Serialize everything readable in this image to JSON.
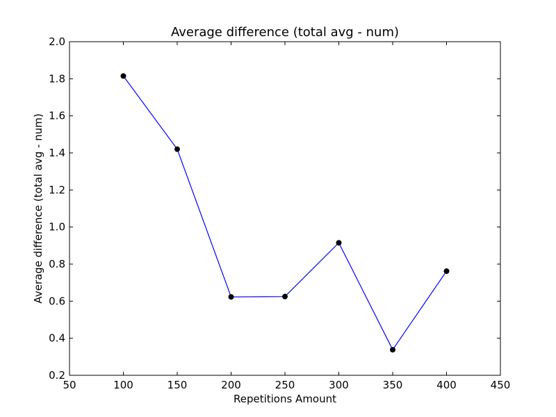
{
  "chart_data": {
    "type": "line",
    "title": "Average difference (total avg - num)",
    "xlabel": "Repetitions Amount",
    "ylabel": "Average difference (total avg - num)",
    "xlim": [
      50,
      450
    ],
    "ylim": [
      0.2,
      2.0
    ],
    "xticks": [
      50,
      100,
      150,
      200,
      250,
      300,
      350,
      400,
      450
    ],
    "xtick_labels": [
      "50",
      "100",
      "150",
      "200",
      "250",
      "300",
      "350",
      "400",
      "450"
    ],
    "yticks": [
      0.2,
      0.4,
      0.6,
      0.8,
      1.0,
      1.2,
      1.4,
      1.6,
      1.8,
      2.0
    ],
    "ytick_labels": [
      "0.2",
      "0.4",
      "0.6",
      "0.8",
      "1.0",
      "1.2",
      "1.4",
      "1.6",
      "1.8",
      "2.0"
    ],
    "grid": false,
    "series": [
      {
        "x": [
          100,
          150,
          200,
          250,
          300,
          350,
          400
        ],
        "y": [
          1.815,
          1.42,
          0.623,
          0.625,
          0.915,
          0.338,
          0.762
        ],
        "line_color": "#0000ff",
        "marker_color": "#000000"
      }
    ]
  }
}
